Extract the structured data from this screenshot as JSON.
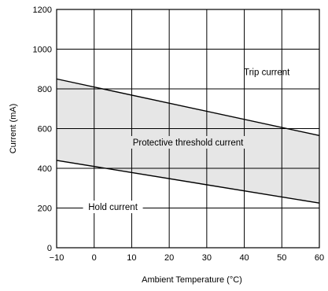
{
  "chart_data": {
    "type": "area",
    "title": "",
    "xlabel": "Ambient Temperature (°C)",
    "ylabel": "Current (mA)",
    "xlim": [
      -10,
      60
    ],
    "ylim": [
      0,
      1200
    ],
    "x_ticks": [
      -10,
      0,
      10,
      20,
      30,
      40,
      50,
      60
    ],
    "x_tick_labels": [
      "−10",
      "0",
      "10",
      "20",
      "30",
      "40",
      "50",
      "60"
    ],
    "y_ticks": [
      0,
      200,
      400,
      600,
      800,
      1000,
      1200
    ],
    "y_tick_labels": [
      "0",
      "200",
      "400",
      "600",
      "800",
      "1000",
      "1200"
    ],
    "grid": true,
    "band_fill": "#e6e6e6",
    "line_color": "#000000",
    "series": [
      {
        "label": "Trip current",
        "x": [
          -10,
          60
        ],
        "y": [
          850,
          565
        ]
      },
      {
        "label": "Hold current",
        "x": [
          -10,
          60
        ],
        "y": [
          440,
          225
        ]
      }
    ],
    "annotations": {
      "trip": "Trip current",
      "band": "Protective threshold current",
      "hold": "Hold current"
    }
  }
}
